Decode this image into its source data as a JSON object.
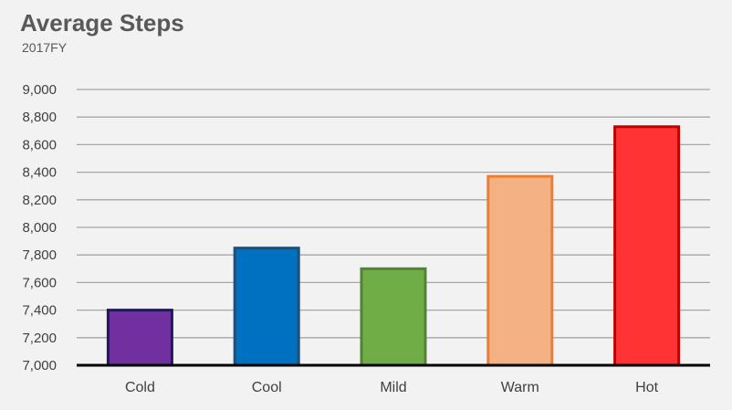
{
  "chart_data": {
    "type": "bar",
    "title": "Average Steps",
    "subtitle": "2017FY",
    "xlabel": "",
    "ylabel": "",
    "categories": [
      "Cold",
      "Cool",
      "Mild",
      "Warm",
      "Hot"
    ],
    "values": [
      7400,
      7850,
      7700,
      8370,
      8730
    ],
    "ylim": [
      7000,
      9000
    ],
    "yticks": [
      7000,
      7200,
      7400,
      7600,
      7800,
      8000,
      8200,
      8400,
      8600,
      8800,
      9000
    ],
    "ytick_labels": [
      "7,000",
      "7,200",
      "7,400",
      "7,600",
      "7,800",
      "8,000",
      "8,200",
      "8,400",
      "8,600",
      "8,800",
      "9,000"
    ],
    "grid": true,
    "legend": "none",
    "colors": {
      "fills": [
        "#7030a0",
        "#0070c0",
        "#70ad47",
        "#f4b183",
        "#ff3333"
      ],
      "borders": [
        "#1f1a5c",
        "#1f4e79",
        "#548235",
        "#ed7d31",
        "#c00000"
      ],
      "grid": "#a6a6a6",
      "axis": "#000000"
    }
  }
}
